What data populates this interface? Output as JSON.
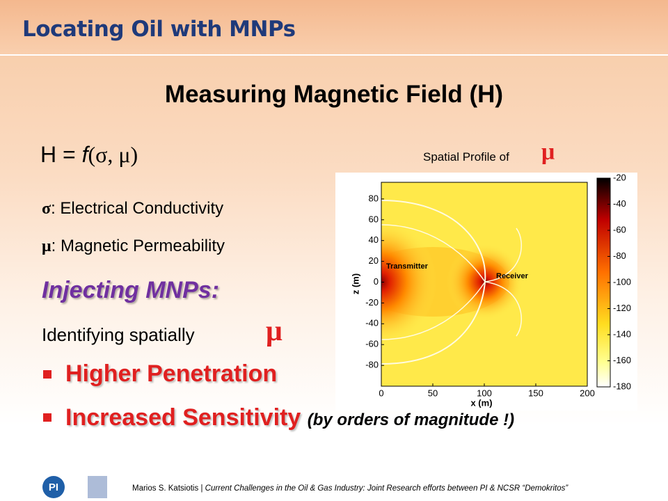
{
  "header": {
    "title": "Locating Oil with MNPs"
  },
  "body": {
    "heading": "Measuring Magnetic Field (H)",
    "formula": {
      "lhs": "H =",
      "function": "f",
      "args": "(σ, μ)"
    },
    "definitions": [
      {
        "symbol": "σ",
        "text": ": Electrical Conductivity"
      },
      {
        "symbol": "μ",
        "text": ": Magnetic Permeability"
      }
    ],
    "section": "Injecting MNPs:",
    "statement": "Identifying spatially",
    "statement_symbol": "μ",
    "bullets": [
      {
        "text": "Higher Penetration"
      },
      {
        "text": "Increased Sensitivity",
        "note": "(by orders of magnitude !)"
      }
    ]
  },
  "figure": {
    "caption": "Spatial Profile of",
    "caption_symbol": "μ",
    "xlabel": "x (m)",
    "ylabel": "z (m)",
    "xlim": [
      0,
      200
    ],
    "ylim": [
      -100,
      96
    ],
    "xticks": [
      0,
      50,
      100,
      150,
      200
    ],
    "yticks": [
      80,
      60,
      40,
      20,
      0,
      -20,
      -40,
      -60,
      -80
    ],
    "clim": [
      -180,
      -20
    ],
    "colorbar_ticks": [
      -20,
      -40,
      -60,
      -80,
      -100,
      -120,
      -140,
      -160,
      -180
    ],
    "annotations": [
      "Transmitter",
      "Receiver"
    ]
  },
  "footer": {
    "logo_text": "PI",
    "author": "Marios S. Katsiotis",
    "separator": "|",
    "talk": "Current Challenges in the Oil & Gas Industry: Joint Research efforts between PI & NCSR “Demokritos”"
  }
}
